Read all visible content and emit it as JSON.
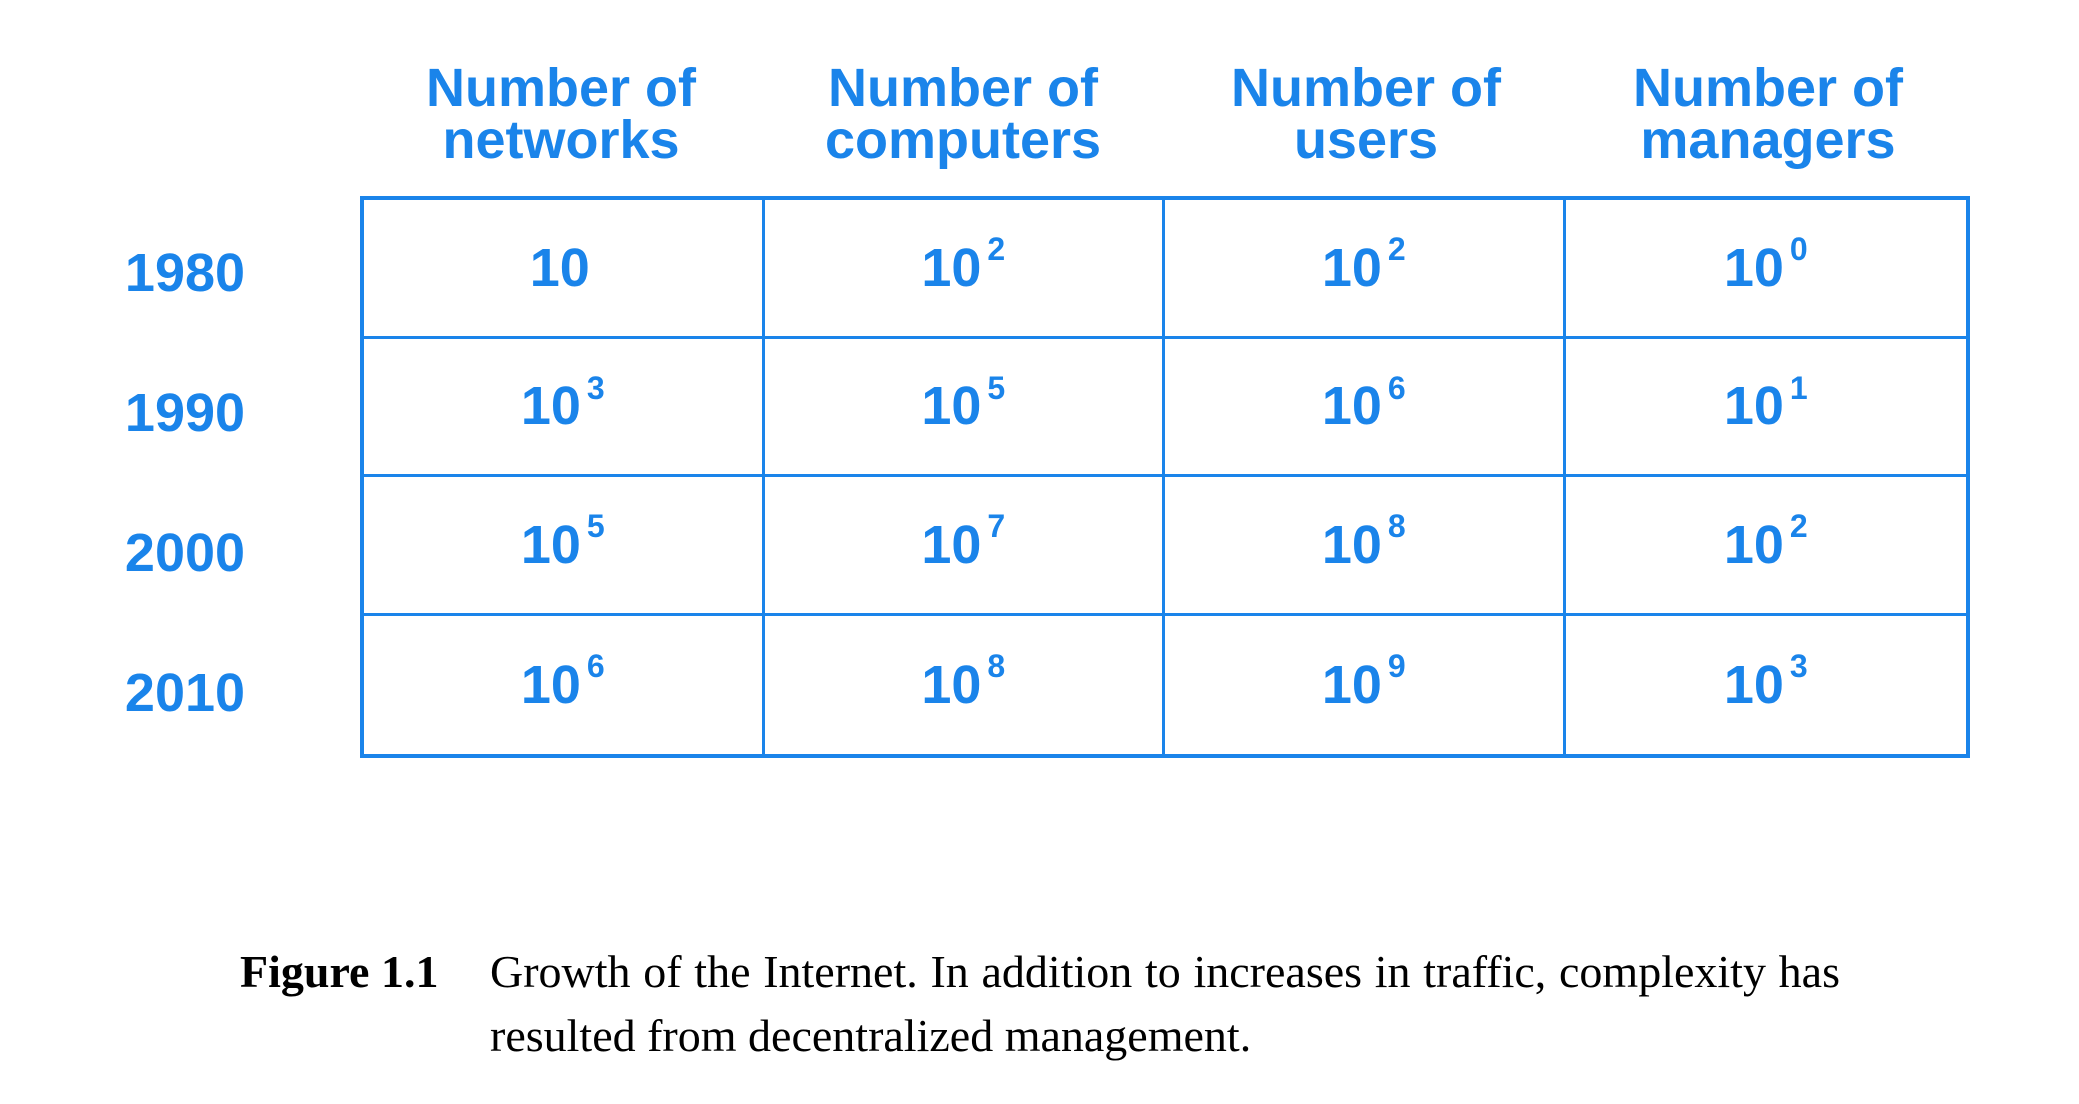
{
  "table": {
    "headers": [
      {
        "line1": "Number of",
        "line2": "networks"
      },
      {
        "line1": "Number of",
        "line2": "computers"
      },
      {
        "line1": "Number of",
        "line2": "users"
      },
      {
        "line1": "Number of",
        "line2": "managers"
      }
    ],
    "rows": [
      {
        "year": "1980",
        "cells": [
          {
            "base": "10",
            "exp": ""
          },
          {
            "base": "10",
            "exp": "2"
          },
          {
            "base": "10",
            "exp": "2"
          },
          {
            "base": "10",
            "exp": "0"
          }
        ]
      },
      {
        "year": "1990",
        "cells": [
          {
            "base": "10",
            "exp": "3"
          },
          {
            "base": "10",
            "exp": "5"
          },
          {
            "base": "10",
            "exp": "6"
          },
          {
            "base": "10",
            "exp": "1"
          }
        ]
      },
      {
        "year": "2000",
        "cells": [
          {
            "base": "10",
            "exp": "5"
          },
          {
            "base": "10",
            "exp": "7"
          },
          {
            "base": "10",
            "exp": "8"
          },
          {
            "base": "10",
            "exp": "2"
          }
        ]
      },
      {
        "year": "2010",
        "cells": [
          {
            "base": "10",
            "exp": "6"
          },
          {
            "base": "10",
            "exp": "8"
          },
          {
            "base": "10",
            "exp": "9"
          },
          {
            "base": "10",
            "exp": "3"
          }
        ]
      }
    ],
    "color": "#1a84ea"
  },
  "caption": {
    "label": "Figure 1.1",
    "text": "Growth of the Internet.  In addition to increases in traffic, complexity has resulted from decentralized management."
  }
}
